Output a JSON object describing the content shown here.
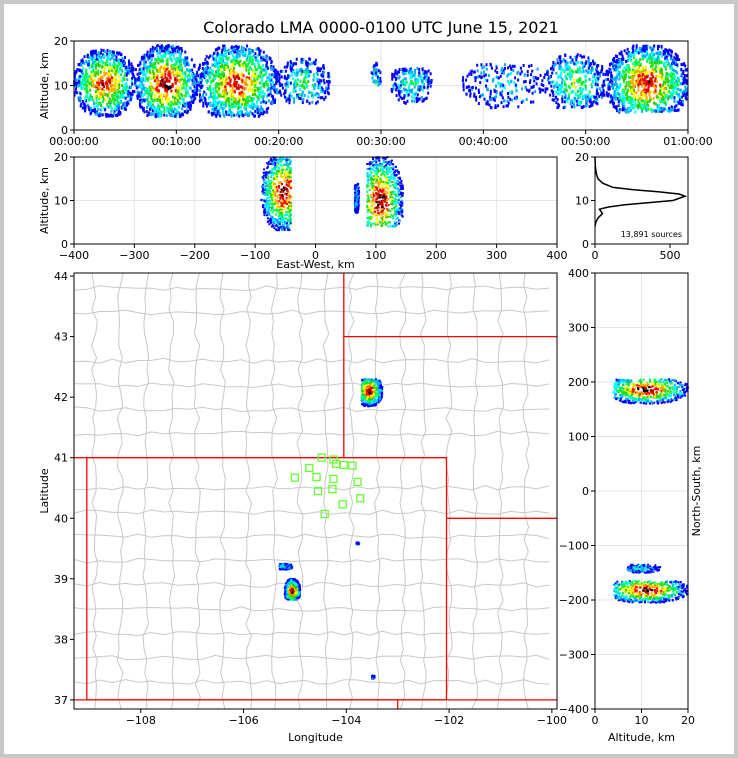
{
  "chart_data": [
    {
      "id": "time_height",
      "type": "heatmap",
      "title": "Colorado LMA 0000-0100 UTC June 15, 2021",
      "ylabel": "Altitude, km",
      "xlim": [
        "00:00:00",
        "01:00:00"
      ],
      "ylim": [
        0,
        20
      ],
      "xticks": [
        "00:00:00",
        "00:10:00",
        "00:20:00",
        "00:30:00",
        "00:40:00",
        "00:50:00",
        "01:00:00"
      ],
      "yticks": [
        0,
        10,
        20
      ],
      "grid": true,
      "clusters": [
        {
          "t_min": [
            0,
            6
          ],
          "alt_km": [
            3,
            18
          ],
          "intensity": 0.9
        },
        {
          "t_min": [
            6,
            12
          ],
          "alt_km": [
            3,
            19
          ],
          "intensity": 1.0
        },
        {
          "t_min": [
            12,
            20
          ],
          "alt_km": [
            3,
            19
          ],
          "intensity": 0.9
        },
        {
          "t_min": [
            20,
            25
          ],
          "alt_km": [
            6,
            16
          ],
          "intensity": 0.4
        },
        {
          "t_min": [
            29,
            30
          ],
          "alt_km": [
            10,
            15
          ],
          "intensity": 0.3
        },
        {
          "t_min": [
            31,
            35
          ],
          "alt_km": [
            6,
            14
          ],
          "intensity": 0.4
        },
        {
          "t_min": [
            38,
            46
          ],
          "alt_km": [
            5,
            15
          ],
          "intensity": 0.2
        },
        {
          "t_min": [
            46,
            52
          ],
          "alt_km": [
            5,
            17
          ],
          "intensity": 0.5
        },
        {
          "t_min": [
            52,
            60
          ],
          "alt_km": [
            4,
            19
          ],
          "intensity": 0.9
        }
      ]
    },
    {
      "id": "ew_height",
      "type": "heatmap",
      "xlabel": "East-West, km",
      "ylabel": "Altitude, km",
      "xlim": [
        -400,
        400
      ],
      "ylim": [
        0,
        20
      ],
      "xticks": [
        -400,
        -300,
        -200,
        -100,
        0,
        100,
        200,
        300,
        400
      ],
      "yticks": [
        0,
        10,
        20
      ],
      "grid": true,
      "clusters": [
        {
          "ew_km": [
            -90,
            -40
          ],
          "alt_km": [
            3,
            20
          ],
          "center": [
            -52,
            12
          ],
          "intensity": 1.0
        },
        {
          "ew_km": [
            65,
            72
          ],
          "alt_km": [
            7,
            14
          ],
          "center": [
            68,
            11
          ],
          "intensity": 0.3
        },
        {
          "ew_km": [
            85,
            145
          ],
          "alt_km": [
            4,
            20
          ],
          "center": [
            108,
            10
          ],
          "intensity": 1.0
        }
      ]
    },
    {
      "id": "alt_histogram",
      "type": "line",
      "xlim": [
        0,
        620
      ],
      "ylim": [
        0,
        20
      ],
      "xticks": [
        0,
        500
      ],
      "yticks": [
        0,
        10,
        20
      ],
      "annotation": "13,891 sources",
      "x": [
        0,
        5,
        20,
        50,
        40,
        30,
        90,
        200,
        350,
        520,
        600,
        560,
        420,
        250,
        120,
        50,
        20,
        10,
        5,
        2,
        0
      ],
      "y": [
        4,
        5,
        6,
        7,
        7.5,
        8,
        8.5,
        9,
        9.5,
        10,
        11,
        11.5,
        12,
        12.5,
        13,
        14,
        15,
        16,
        17,
        18,
        20
      ]
    },
    {
      "id": "plan_map",
      "type": "scatter",
      "xlabel": "Longitude",
      "ylabel": "Latitude",
      "xlim": [
        -109.3,
        -99.9
      ],
      "ylim": [
        36.85,
        44.05
      ],
      "xticks": [
        -108,
        -106,
        -104,
        -102,
        -100
      ],
      "yticks": [
        37,
        38,
        39,
        40,
        41,
        42,
        43,
        44
      ],
      "colors": {
        "state_border": "#ff0000",
        "county_border": "#c8c8c8",
        "station": "#66ff33"
      },
      "stations": [
        {
          "lon": -104.48,
          "lat": 41.0
        },
        {
          "lon": -104.72,
          "lat": 40.83
        },
        {
          "lon": -104.25,
          "lat": 40.97
        },
        {
          "lon": -104.2,
          "lat": 40.9
        },
        {
          "lon": -104.05,
          "lat": 40.88
        },
        {
          "lon": -103.88,
          "lat": 40.87
        },
        {
          "lon": -105.0,
          "lat": 40.67
        },
        {
          "lon": -104.58,
          "lat": 40.68
        },
        {
          "lon": -104.25,
          "lat": 40.65
        },
        {
          "lon": -103.78,
          "lat": 40.6
        },
        {
          "lon": -104.55,
          "lat": 40.45
        },
        {
          "lon": -104.27,
          "lat": 40.48
        },
        {
          "lon": -103.73,
          "lat": 40.33
        },
        {
          "lon": -104.07,
          "lat": 40.23
        },
        {
          "lon": -104.42,
          "lat": 40.07
        }
      ],
      "clusters": [
        {
          "lon": [
            -103.7,
            -103.3
          ],
          "lat": [
            41.85,
            42.3
          ],
          "center": [
            -103.55,
            42.1
          ],
          "intensity": 1.0
        },
        {
          "lon": [
            -105.3,
            -105.05
          ],
          "lat": [
            39.15,
            39.25
          ],
          "center": [
            -105.2,
            39.2
          ],
          "intensity": 0.3
        },
        {
          "lon": [
            -105.2,
            -104.9
          ],
          "lat": [
            38.65,
            39.0
          ],
          "center": [
            -105.05,
            38.8
          ],
          "intensity": 1.0
        },
        {
          "lon": [
            -103.8,
            -103.75
          ],
          "lat": [
            39.57,
            39.6
          ],
          "center": [
            -103.78,
            39.58
          ],
          "intensity": 0.1
        },
        {
          "lon": [
            -103.5,
            -103.45
          ],
          "lat": [
            37.35,
            37.4
          ],
          "center": [
            -103.48,
            37.38
          ],
          "intensity": 0.1
        }
      ]
    },
    {
      "id": "ns_height",
      "type": "heatmap",
      "xlabel": "Altitude, km",
      "ylabel": "North-South, km",
      "xlim": [
        0,
        20
      ],
      "ylim": [
        -400,
        400
      ],
      "xticks": [
        0,
        10,
        20
      ],
      "yticks": [
        -400,
        -300,
        -200,
        -100,
        0,
        100,
        200,
        300,
        400
      ],
      "grid": true,
      "clusters": [
        {
          "alt_km": [
            4,
            20
          ],
          "ns_km": [
            160,
            205
          ],
          "center": [
            11,
            186
          ],
          "intensity": 1.0
        },
        {
          "alt_km": [
            7,
            14
          ],
          "ns_km": [
            -150,
            -135
          ],
          "center": [
            10,
            -142
          ],
          "intensity": 0.3
        },
        {
          "alt_km": [
            4,
            20
          ],
          "ns_km": [
            -205,
            -165
          ],
          "center": [
            11,
            -182
          ],
          "intensity": 1.0
        }
      ]
    }
  ]
}
